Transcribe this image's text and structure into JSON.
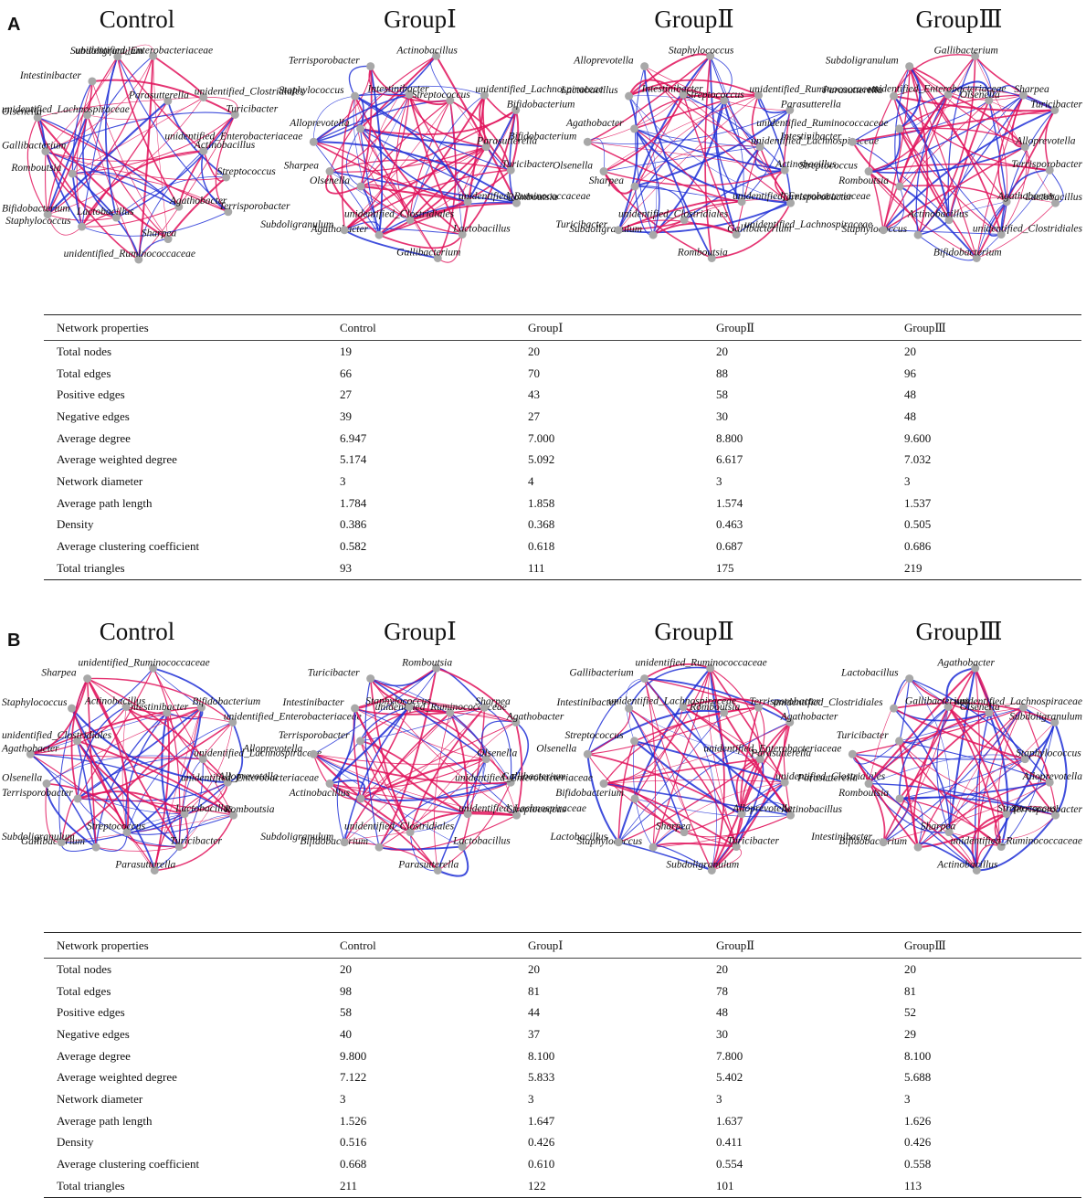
{
  "figure": {
    "panels": [
      {
        "letter": "A",
        "networks": [
          {
            "title": "Control",
            "nodes": [
              "unidentified_Enterobacteriaceae",
              "Parasutterella",
              "unidentified_Clostridiales",
              "Turicibacter",
              "Actinobacillus",
              "Streptococcus",
              "Terrisporobacter",
              "Agathobacter",
              "Sharpea",
              "unidentified_Ruminococcaceae",
              "Lactobacillus",
              "Staphylococcus",
              "Bifidobacterium",
              "Romboutsia",
              "Gallibacterium",
              "Olsenella",
              "unidentified_Lachnospiraceae",
              "Intestinibacter",
              "Subdoligranulum"
            ]
          },
          {
            "title": "GroupⅠ",
            "nodes": [
              "Actinobacillus",
              "Streptococcus",
              "unidentified_Lachnospiraceae",
              "Bifidobacterium",
              "Parasutterella",
              "Turicibacter",
              "Romboutsia",
              "unidentified_Ruminococcaceae",
              "Lactobacillus",
              "Gallibacterium",
              "unidentified_Clostridiales",
              "Agathobacter",
              "Subdoligranulum",
              "Olsenella",
              "Sharpea",
              "unidentified_Enterobacteriaceae",
              "Alloprevotella",
              "Staphylococcus",
              "Terrisporobacter",
              "Intestinibacter"
            ]
          },
          {
            "title": "GroupⅡ",
            "nodes": [
              "Staphylococcus",
              "Streptococcus",
              "unidentified_Ruminococcaceae",
              "Parasutterella",
              "unidentified_Lachnospiraceae",
              "Actinobacillus",
              "Terrisporobacter",
              "unidentified_Enterobacteriaceae",
              "Gallibacterium",
              "Romboutsia",
              "unidentified_Clostridiales",
              "Subdoligranulum",
              "Turicibacter",
              "Sharpea",
              "Olsenella",
              "Bifidobacterium",
              "Agathobacter",
              "Lactobacillus",
              "Alloprevotella",
              "Intestinibacter"
            ]
          },
          {
            "title": "GroupⅢ",
            "nodes": [
              "Gallibacterium",
              "Olsenella",
              "Sharpea",
              "Turicibacter",
              "Alloprevotella",
              "Terrisporobacter",
              "Lactobacillus",
              "Agathobacter",
              "unidentified_Clostridiales",
              "Bifidobacterium",
              "Actinobacillus",
              "Staphylococcus",
              "unidentified_Lachnospiraceae",
              "Romboutsia",
              "Streptococcus",
              "Intestinibacter",
              "unidentified_Ruminococcaceae",
              "Parasutterella",
              "Subdoligranulum",
              "unidentified_Enterobacteriaceae"
            ]
          }
        ],
        "table": {
          "headers": [
            "Network properties",
            "Control",
            "GroupⅠ",
            "GroupⅡ",
            "GroupⅢ"
          ],
          "rows": [
            [
              "Total nodes",
              "19",
              "20",
              "20",
              "20"
            ],
            [
              "Total edges",
              "66",
              "70",
              "88",
              "96"
            ],
            [
              "Positive edges",
              "27",
              "43",
              "58",
              "48"
            ],
            [
              "Negative edges",
              "39",
              "27",
              "30",
              "48"
            ],
            [
              "Average degree",
              "6.947",
              "7.000",
              "8.800",
              "9.600"
            ],
            [
              "Average weighted degree",
              "5.174",
              "5.092",
              "6.617",
              "7.032"
            ],
            [
              "Network diameter",
              "3",
              "4",
              "3",
              "3"
            ],
            [
              "Average path length",
              "1.784",
              "1.858",
              "1.574",
              "1.537"
            ],
            [
              "Density",
              "0.386",
              "0.368",
              "0.463",
              "0.505"
            ],
            [
              "Average clustering coefficient",
              "0.582",
              "0.618",
              "0.687",
              "0.686"
            ],
            [
              "Total triangles",
              "93",
              "111",
              "175",
              "219"
            ]
          ]
        }
      },
      {
        "letter": "B",
        "networks": [
          {
            "title": "Control",
            "nodes": [
              "unidentified_Ruminococcaceae",
              "Intestinibacter",
              "Bifidobacterium",
              "unidentified_Enterobacteriaceae",
              "unidentified_Lachnospiraceae",
              "Alloprevotella",
              "Romboutsia",
              "Lactobacillus",
              "Turicibacter",
              "Parasutterella",
              "Streptococcus",
              "Gallibacterium",
              "Subdoligranulum",
              "Terrisporobacter",
              "Olsenella",
              "Agathobacter",
              "unidentified_Clostridiales",
              "Staphylococcus",
              "Sharpea",
              "Actinobacillus"
            ]
          },
          {
            "title": "GroupⅠ",
            "nodes": [
              "Romboutsia",
              "unidentified_Ruminococcaceae",
              "Sharpea",
              "Agathobacter",
              "Olsenella",
              "Gallibacterium",
              "Streptococcus",
              "unidentified_Lachnospiraceae",
              "Lactobacillus",
              "Parasutterella",
              "unidentified_Clostridiales",
              "Bifidobacterium",
              "Subdoligranulum",
              "Actinobacillus",
              "unidentified_Enterobacteriaceae",
              "Alloprevotella",
              "Terrisporobacter",
              "Intestinibacter",
              "Turicibacter",
              "Staphylococcus"
            ]
          },
          {
            "title": "GroupⅡ",
            "nodes": [
              "unidentified_Ruminococcaceae",
              "Romboutsia",
              "Terrisporobacter",
              "Agathobacter",
              "Parasutterella",
              "unidentified_Clostridiales",
              "Actinobacillus",
              "Alloprevotella",
              "Turicibacter",
              "Subdoligranulum",
              "Sharpea",
              "Staphylococcus",
              "Lactobacillus",
              "Bifidobacterium",
              "unidentified_Enterobacteriaceae",
              "Olsenella",
              "Streptococcus",
              "Intestinibacter",
              "Gallibacterium",
              "unidentified_Lachnospiraceae"
            ]
          },
          {
            "title": "GroupⅢ",
            "nodes": [
              "Agathobacter",
              "Olsenella",
              "unidentified_Lachnospiraceae",
              "Subdoligranulum",
              "Staphylococcus",
              "Alloprevotella",
              "Terrisporobacter",
              "Streptococcus",
              "unidentified_Ruminococcaceae",
              "Actinobacillus",
              "Sharpea",
              "Bifidobacterium",
              "Intestinibacter",
              "Romboutsia",
              "Parasutterella",
              "unidentified_Enterobacteriaceae",
              "Turicibacter",
              "unidentified_Clostridiales",
              "Lactobacillus",
              "Gallibacterium"
            ]
          }
        ],
        "table": {
          "headers": [
            "Network properties",
            "Control",
            "GroupⅠ",
            "GroupⅡ",
            "GroupⅢ"
          ],
          "rows": [
            [
              "Total nodes",
              "20",
              "20",
              "20",
              "20"
            ],
            [
              "Total edges",
              "98",
              "81",
              "78",
              "81"
            ],
            [
              "Positive edges",
              "58",
              "44",
              "48",
              "52"
            ],
            [
              "Negative edges",
              "40",
              "37",
              "30",
              "29"
            ],
            [
              "Average degree",
              "9.800",
              "8.100",
              "7.800",
              "8.100"
            ],
            [
              "Average weighted degree",
              "7.122",
              "5.833",
              "5.402",
              "5.688"
            ],
            [
              "Network diameter",
              "3",
              "3",
              "3",
              "3"
            ],
            [
              "Average path length",
              "1.526",
              "1.647",
              "1.637",
              "1.626"
            ],
            [
              "Density",
              "0.516",
              "0.426",
              "0.411",
              "0.426"
            ],
            [
              "Average clustering coefficient",
              "0.668",
              "0.610",
              "0.554",
              "0.558"
            ],
            [
              "Total triangles",
              "211",
              "122",
              "101",
              "113"
            ]
          ]
        }
      }
    ],
    "edge_colors": {
      "positive": "#e0125a",
      "negative": "#1f2fd6"
    },
    "node_color": "#a8a8a8"
  }
}
